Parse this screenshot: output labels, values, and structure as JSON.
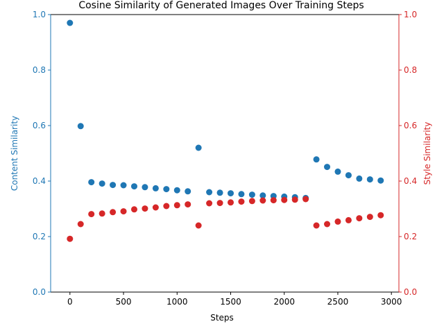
{
  "chart_data": {
    "type": "scatter",
    "title": "Cosine Similarity of Generated Images Over Training Steps",
    "xlabel": "Steps",
    "ylabel_left": "Content Similarity",
    "ylabel_right": "Style Similarity",
    "xlim": [
      -180,
      3070
    ],
    "ylim_left": [
      0,
      1
    ],
    "ylim_right": [
      0,
      1
    ],
    "x_ticks": [
      0,
      500,
      1000,
      1500,
      2000,
      2500,
      3000
    ],
    "y_ticks_left": [
      "0.0",
      "0.2",
      "0.4",
      "0.6",
      "0.8",
      "1.0"
    ],
    "y_ticks_right": [
      "0.0",
      "0.2",
      "0.4",
      "0.6",
      "0.8",
      "1.0"
    ],
    "grid": false,
    "colors": {
      "content": "#1f77b4",
      "style": "#d62728",
      "axis": "#000000"
    },
    "x": [
      0,
      100,
      200,
      300,
      400,
      500,
      600,
      700,
      800,
      900,
      1000,
      1100,
      1200,
      1300,
      1400,
      1500,
      1600,
      1700,
      1800,
      1900,
      2000,
      2100,
      2200,
      2300,
      2400,
      2500,
      2600,
      2700,
      2800,
      2900
    ],
    "series": [
      {
        "name": "Content Similarity",
        "axis": "left",
        "color": "#1f77b4",
        "values": [
          0.97,
          0.598,
          0.396,
          0.391,
          0.386,
          0.385,
          0.381,
          0.378,
          0.374,
          0.371,
          0.367,
          0.363,
          0.52,
          0.36,
          0.358,
          0.356,
          0.353,
          0.351,
          0.348,
          0.346,
          0.344,
          0.342,
          0.339,
          0.478,
          0.451,
          0.434,
          0.421,
          0.409,
          0.406,
          0.402
        ]
      },
      {
        "name": "Style Similarity",
        "axis": "right",
        "color": "#d62728",
        "values": [
          0.192,
          0.245,
          0.281,
          0.283,
          0.288,
          0.291,
          0.298,
          0.301,
          0.305,
          0.31,
          0.313,
          0.316,
          0.24,
          0.32,
          0.321,
          0.323,
          0.326,
          0.328,
          0.33,
          0.331,
          0.332,
          0.333,
          0.335,
          0.24,
          0.245,
          0.254,
          0.259,
          0.266,
          0.271,
          0.277
        ]
      }
    ]
  }
}
